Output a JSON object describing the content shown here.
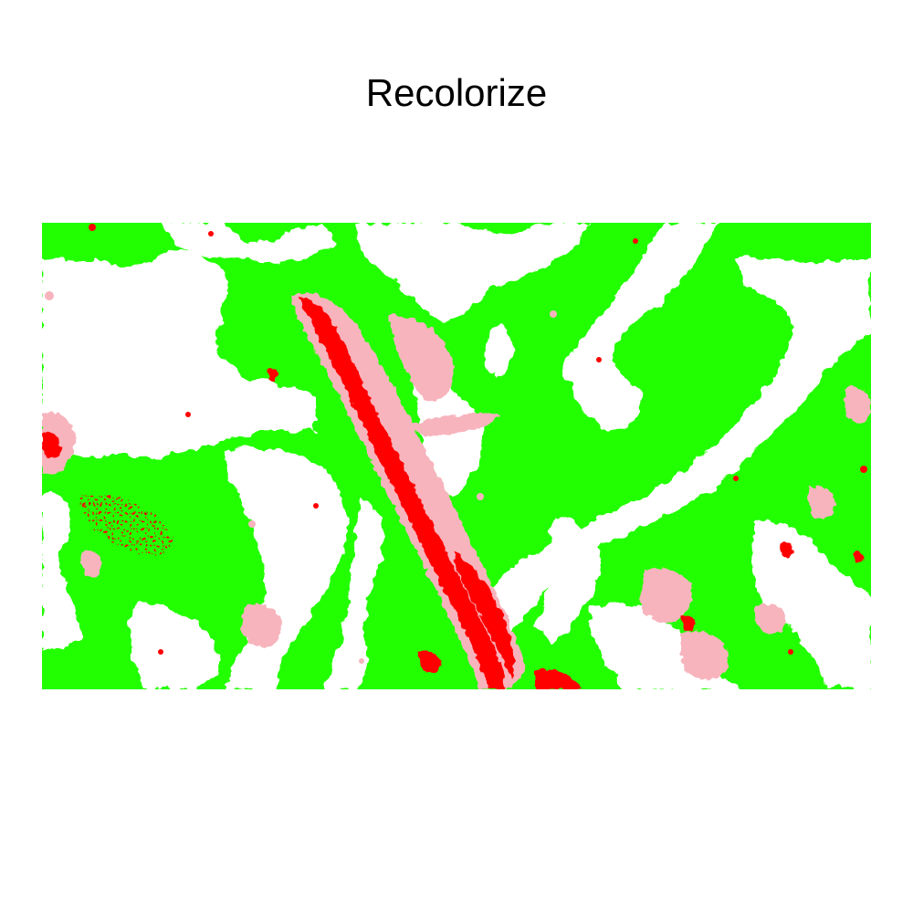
{
  "title": "Recolorize",
  "image": {
    "description_colors": {
      "green": "#22ff00",
      "red": "#ff0000",
      "pink": "#f7b4bd",
      "white": "#ffffff"
    }
  }
}
